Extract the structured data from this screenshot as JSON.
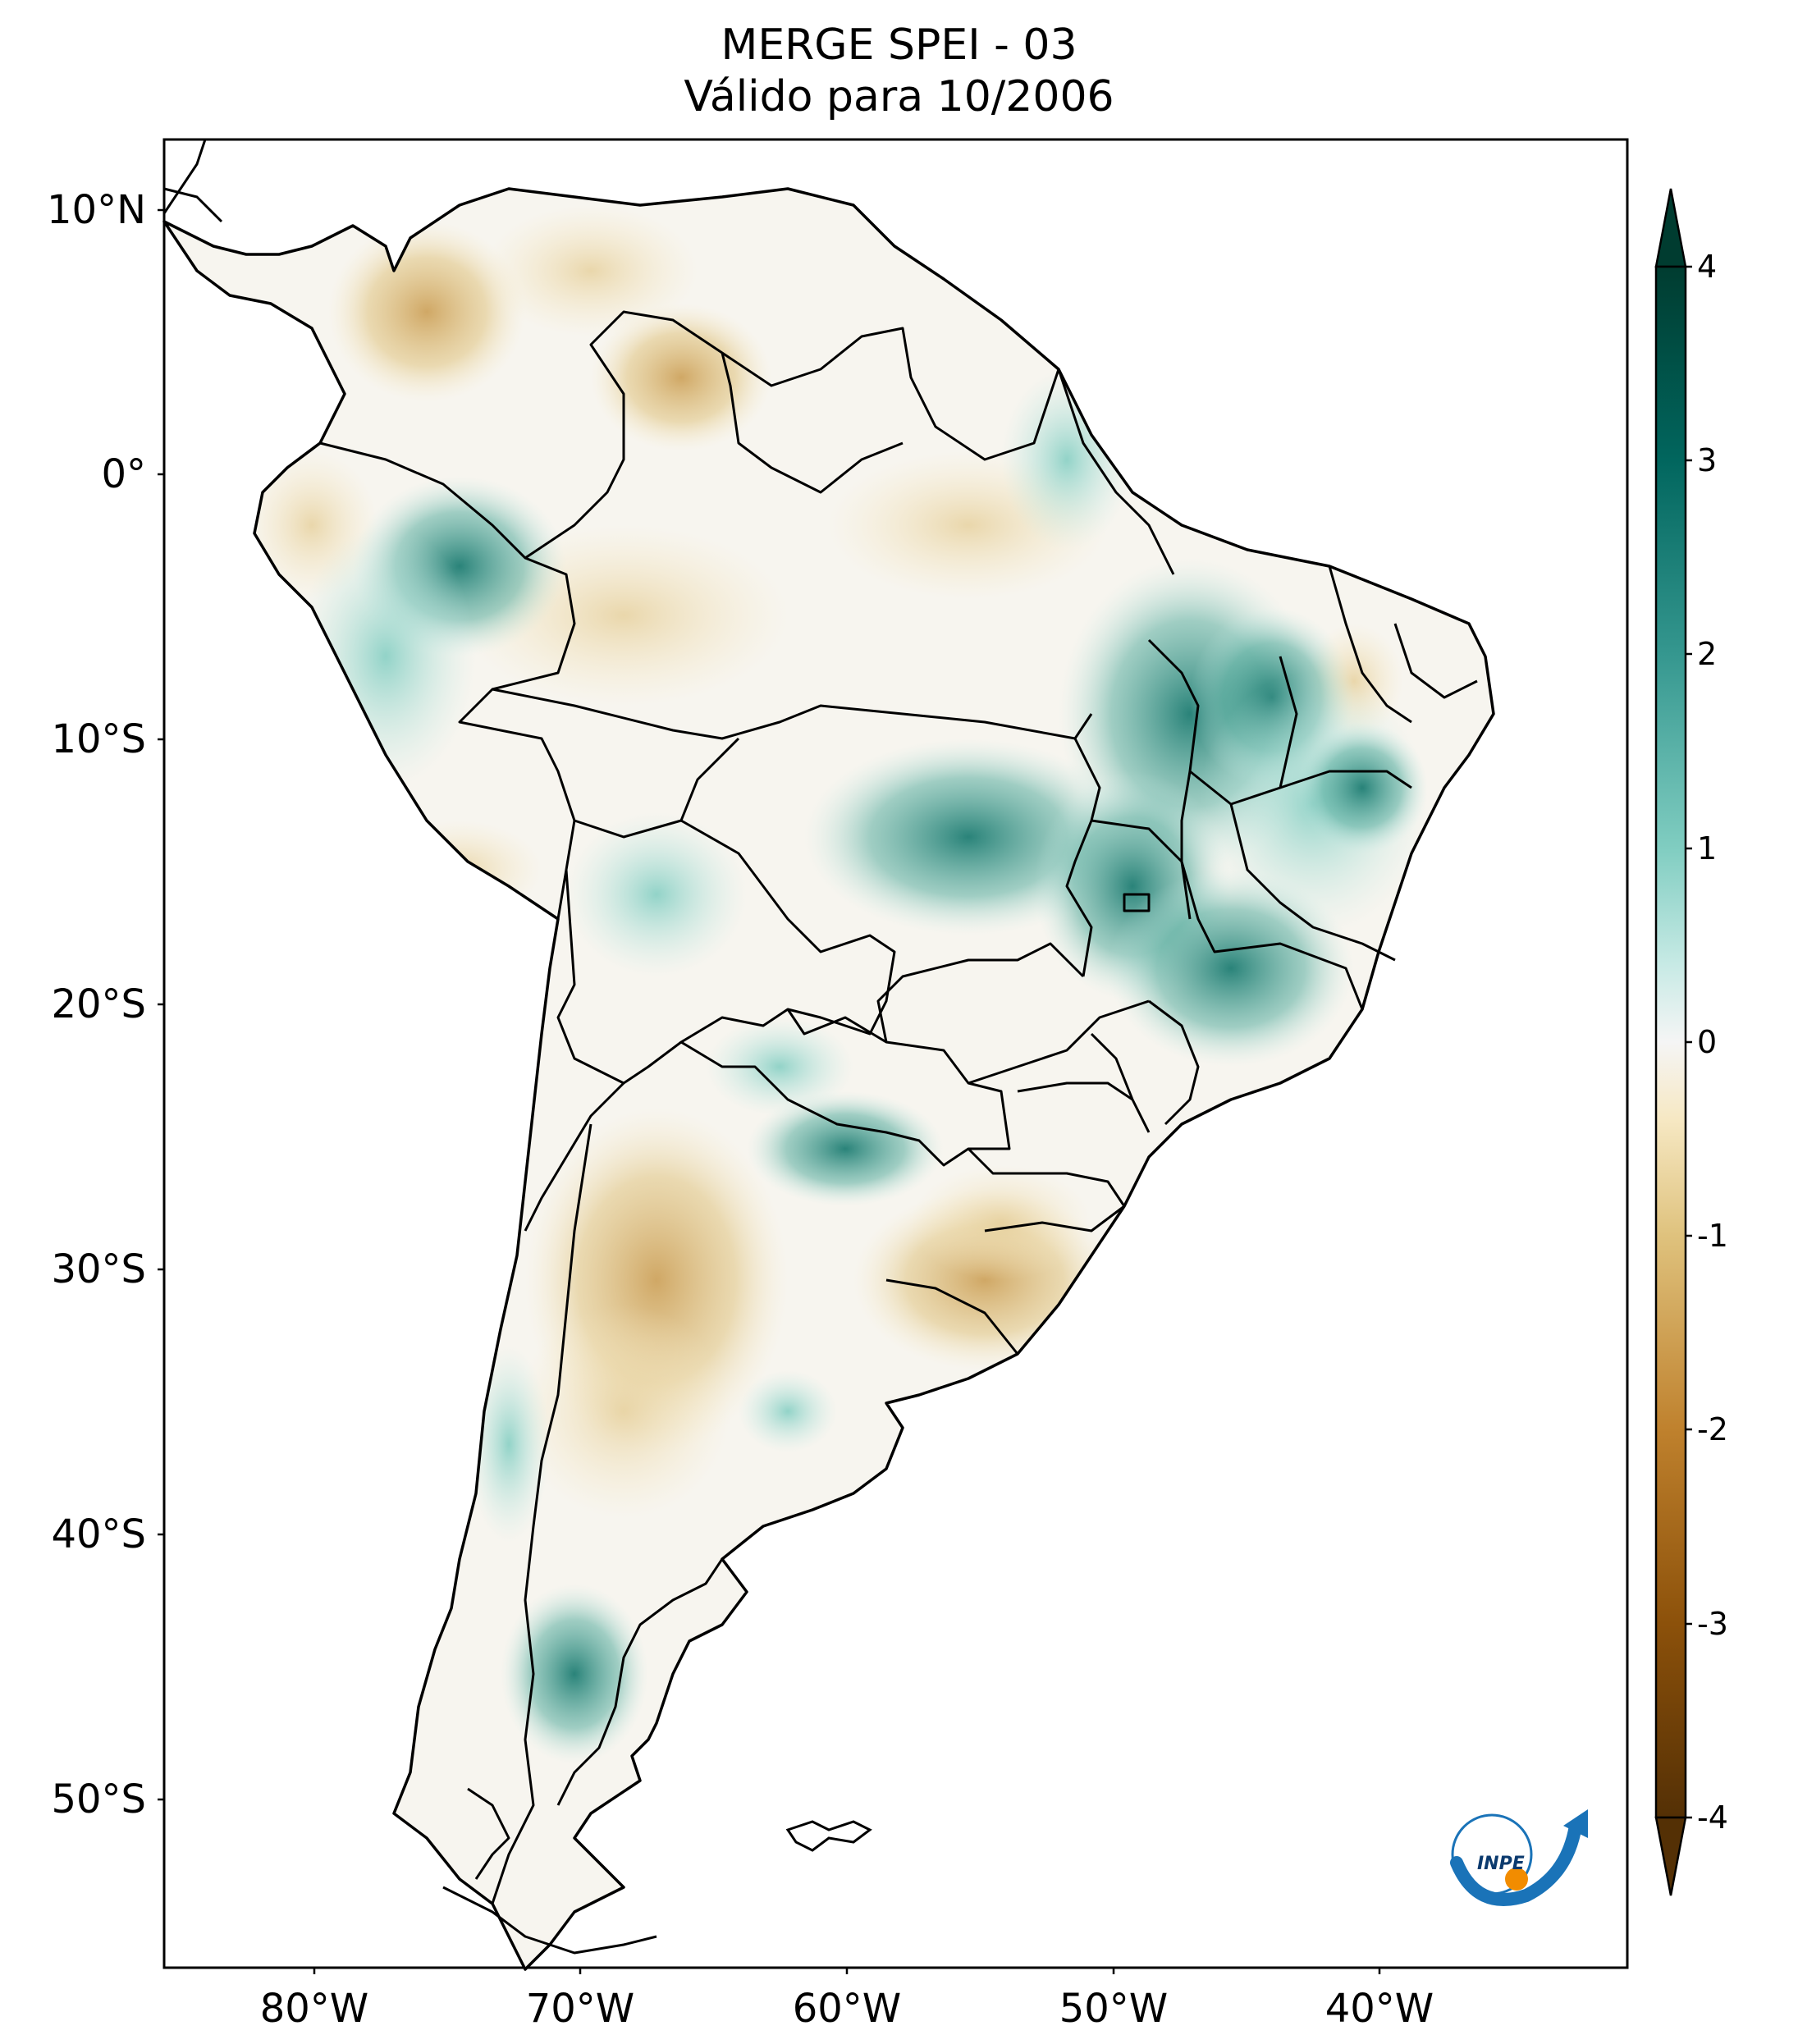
{
  "title": "MERGE   SPEI - 03",
  "subtitle": "Válido para 10/2006",
  "map": {
    "lat_ticks": [
      "10°N",
      "0°",
      "10°S",
      "20°S",
      "30°S",
      "40°S",
      "50°S"
    ],
    "lon_ticks": [
      "80°W",
      "70°W",
      "60°W",
      "50°W",
      "40°W"
    ],
    "lon_range": [
      -85,
      -30
    ],
    "lat_range": [
      -56,
      13
    ]
  },
  "colorbar": {
    "ticks": [
      "4",
      "3",
      "2",
      "1",
      "0",
      "-1",
      "-2",
      "-3",
      "-4"
    ],
    "range": [
      -4,
      4
    ],
    "extend": "both",
    "colormap": "BrBG",
    "colors": {
      "dry_extreme": "#543005",
      "dry_strong": "#8c510a",
      "dry_moderate": "#bf812d",
      "dry_mild": "#dfc27d",
      "dry_slight": "#f6e8c3",
      "neutral": "#f5f5f5",
      "wet_slight": "#c7eae5",
      "wet_mild": "#80cdc1",
      "wet_moderate": "#35978f",
      "wet_strong": "#01665e",
      "wet_extreme": "#003c30"
    }
  },
  "logo": {
    "text": "INPE"
  }
}
